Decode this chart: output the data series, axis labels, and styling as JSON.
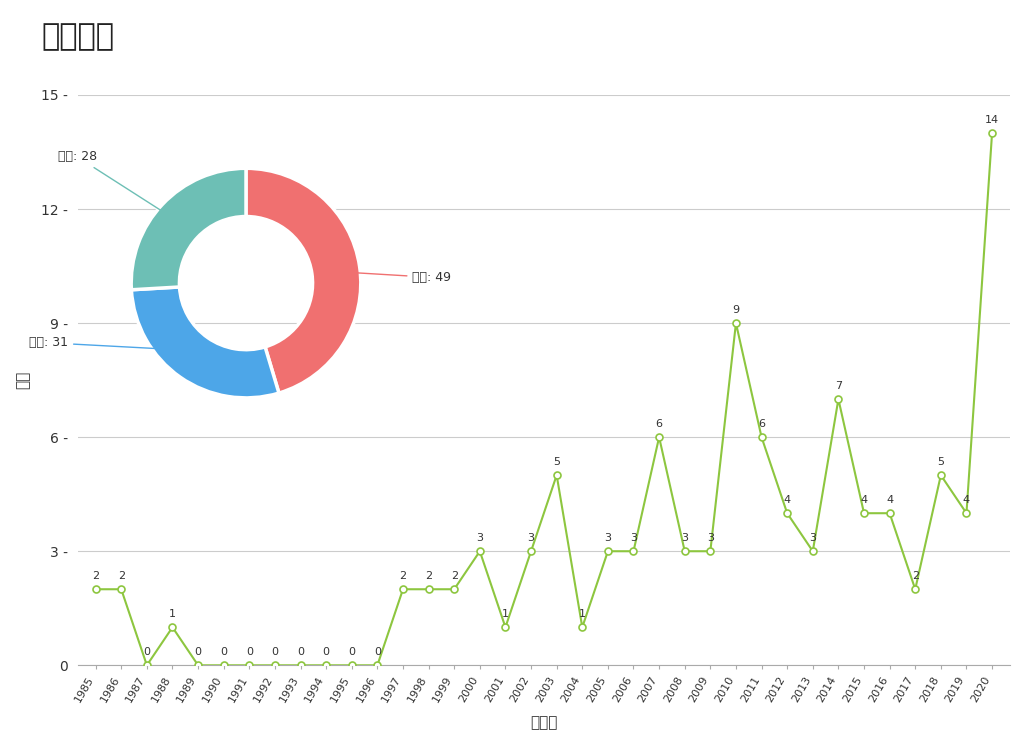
{
  "title": "申请趋势",
  "xlabel": "申请年",
  "ylabel": "数量",
  "line_color": "#8dc63f",
  "marker_facecolor": "white",
  "marker_edgecolor": "#8dc63f",
  "years": [
    "1985",
    "1986",
    "1987",
    "1988",
    "1989",
    "1990",
    "1991",
    "1992",
    "1993",
    "1994",
    "1995",
    "1996",
    "1997",
    "1998",
    "1999",
    "2000",
    "2001",
    "2002",
    "2003",
    "2004",
    "2005",
    "2006",
    "2007",
    "2008",
    "2009",
    "2010",
    "2011",
    "2012",
    "2013",
    "2014",
    "2015",
    "2016",
    "2017",
    "2018",
    "2019",
    "2020"
  ],
  "values": [
    2,
    2,
    0,
    1,
    0,
    0,
    0,
    0,
    0,
    0,
    0,
    0,
    2,
    2,
    2,
    3,
    1,
    3,
    5,
    1,
    3,
    3,
    6,
    3,
    3,
    9,
    6,
    4,
    3,
    7,
    4,
    4,
    2,
    5,
    4,
    14
  ],
  "ylim": [
    0,
    15
  ],
  "yticks": [
    0,
    3,
    6,
    9,
    12,
    15
  ],
  "background_color": "#ffffff",
  "grid_color": "#cccccc",
  "pie_values": [
    49,
    31,
    28
  ],
  "pie_labels": [
    "失效: 49",
    "有效: 31",
    "审中: 28"
  ],
  "pie_colors": [
    "#f07070",
    "#4da6e8",
    "#6dbfb5"
  ]
}
